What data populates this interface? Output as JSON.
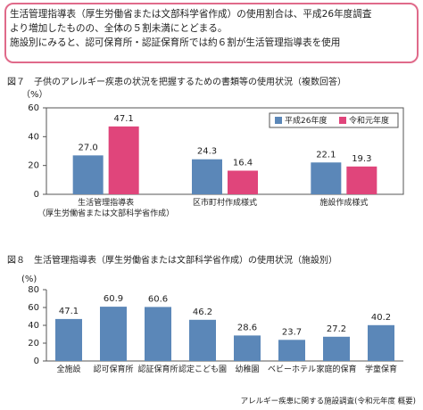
{
  "note": [
    "生活管理指導表（厚生労働省または文部科学省作成）の使用割合は、平成26年度調査",
    "より増加したものの、全体の５割未満にとどまる。",
    "施設別にみると、認可保育所・認証保育所では約６割が生活管理指導表を使用"
  ],
  "chart_data": [
    {
      "type": "bar",
      "title": "図７　子供のアレルギー疾患の状況を把握するための書類等の使用状況（複数回答）",
      "y_label": "（%）",
      "categories": [
        "生活管理指導表\n（厚生労働省または文部科学省作成）",
        "区市町村作成様式",
        "施設作成様式"
      ],
      "series": [
        {
          "name": "平成26年度",
          "color": "#5b87b8",
          "values": [
            27.0,
            24.3,
            22.1
          ],
          "value_labels": [
            "27.0",
            "24.3",
            "22.1"
          ]
        },
        {
          "name": "令和元年度",
          "color": "#e0457b",
          "values": [
            47.1,
            16.4,
            19.3
          ]
        }
      ],
      "ylim": [
        0,
        60
      ],
      "yticks": [
        0,
        20,
        40,
        60
      ],
      "legend": "upper right"
    },
    {
      "type": "bar",
      "title": "図８　生活管理指導表（厚生労働省または文部科学省作成）の使用状況（施設別）",
      "y_label": "(%)",
      "categories": [
        "全施設",
        "認可保育所",
        "認証保育所",
        "認定こども園",
        "幼稚園",
        "ベビーホテル",
        "家庭的保育",
        "学童保育"
      ],
      "values": [
        47.1,
        60.9,
        60.6,
        46.2,
        28.6,
        23.7,
        27.2,
        40.2
      ],
      "color": "#5b87b8",
      "ylim": [
        0,
        80
      ],
      "yticks": [
        0,
        20,
        40,
        60,
        80
      ]
    }
  ],
  "source": "アレルギー疾患に関する施設調査(令和元年度 概要)"
}
